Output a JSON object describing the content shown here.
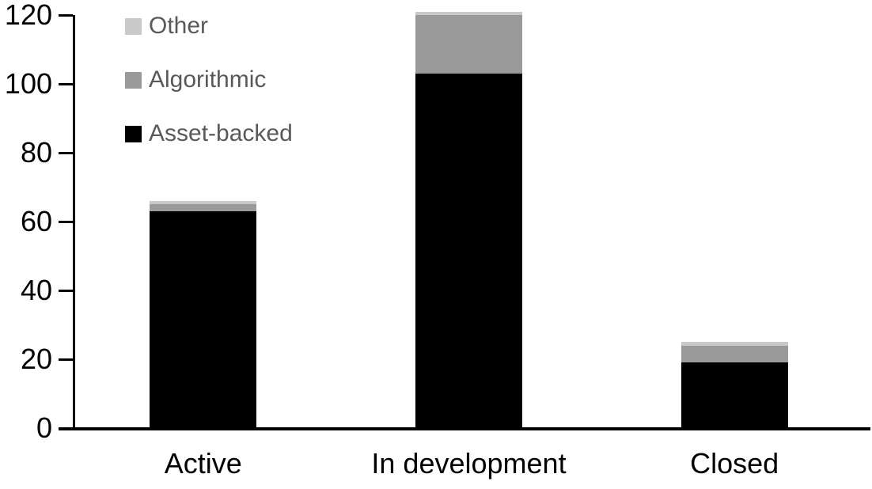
{
  "legend": {
    "items": [
      {
        "label": "Other",
        "color": "#c9c9c9"
      },
      {
        "label": "Algorithmic",
        "color": "#9a9a9a"
      },
      {
        "label": "Asset-backed",
        "color": "#000000"
      }
    ],
    "text_color": "#595959"
  },
  "chart_data": {
    "type": "bar",
    "stacked": true,
    "title": "",
    "xlabel": "",
    "ylabel": "",
    "categories": [
      "Active",
      "In development",
      "Closed"
    ],
    "series": [
      {
        "name": "Asset-backed",
        "color": "#000000",
        "values": [
          63,
          103,
          19
        ]
      },
      {
        "name": "Algorithmic",
        "color": "#9a9a9a",
        "values": [
          2,
          17,
          5
        ]
      },
      {
        "name": "Other",
        "color": "#c9c9c9",
        "values": [
          1,
          1,
          1
        ]
      }
    ],
    "totals": [
      66,
      121,
      25
    ],
    "y_ticks": [
      0,
      20,
      40,
      60,
      80,
      100,
      120
    ],
    "ylim": [
      0,
      120
    ],
    "grid": false,
    "legend_position": "top-left",
    "axis_color": "#000000"
  }
}
